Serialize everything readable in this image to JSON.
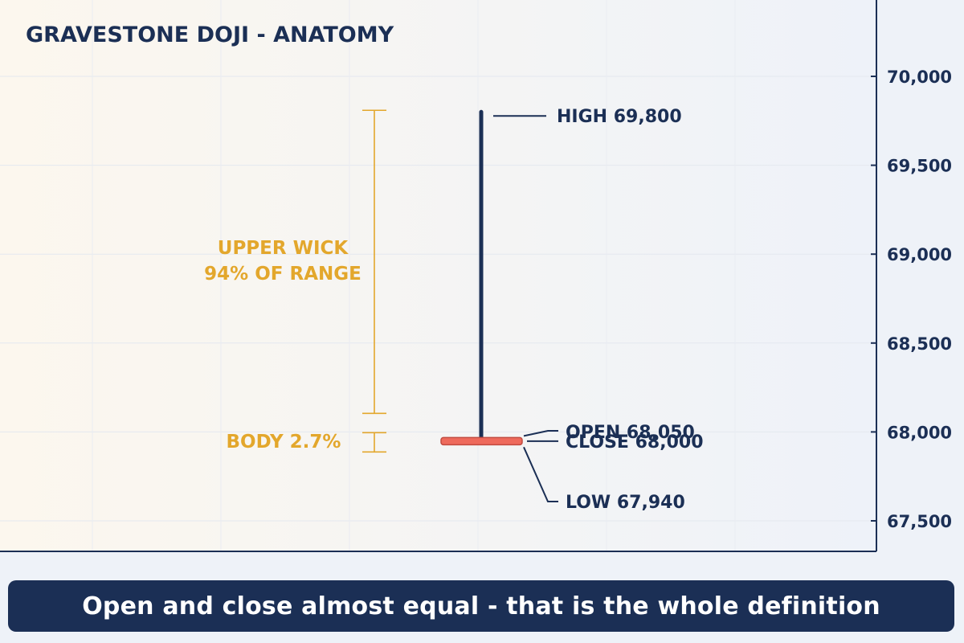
{
  "chart_data": {
    "type": "candlestick",
    "title": "GRAVESTONE DOJI - ANATOMY",
    "ylim": [
      67400,
      70150
    ],
    "y_ticks": [
      67500,
      68000,
      68500,
      69000,
      69500,
      70000
    ],
    "y_tick_labels": [
      "67,500",
      "68,000",
      "68,500",
      "69,000",
      "69,500",
      "70,000"
    ],
    "grid": true,
    "candle": {
      "open": 68050,
      "high": 69800,
      "low": 67940,
      "close": 68000
    },
    "labels": {
      "high": "HIGH 69,800",
      "open": "OPEN 68,050",
      "close": "CLOSE 68,000",
      "low": "LOW 67,940"
    },
    "annotations": {
      "upper_wick_line1": "UPPER WICK",
      "upper_wick_line2": "94% OF RANGE",
      "body": "BODY 2.7%"
    },
    "colors": {
      "wick": "#1b2f55",
      "body": "#ee6a5c",
      "annotation": "#e3a72c",
      "text": "#1b2f55"
    }
  },
  "caption": "Open and close almost equal - that is the whole definition"
}
